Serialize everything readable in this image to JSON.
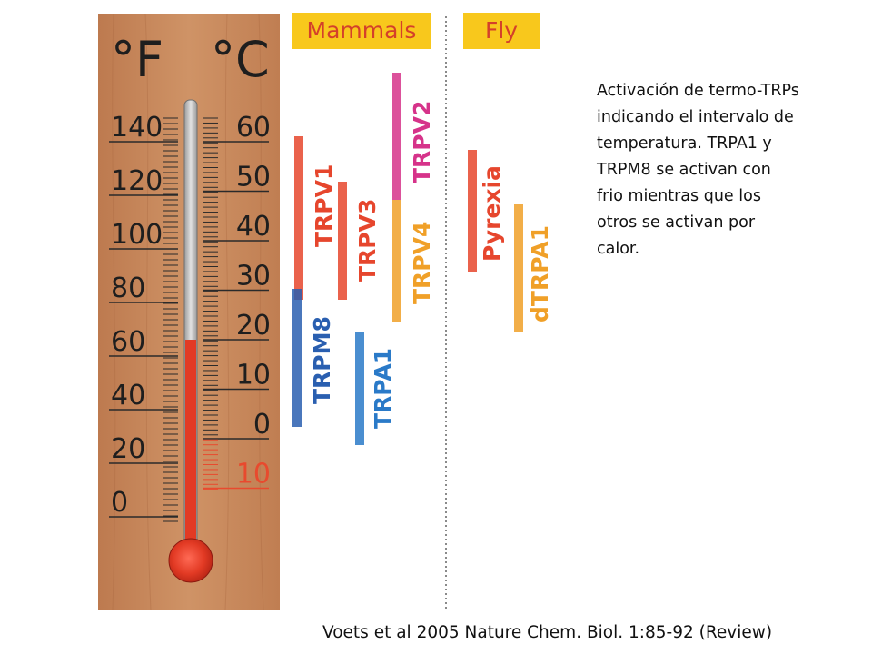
{
  "thermometer": {
    "unit_f": "°F",
    "unit_c": "°C",
    "fahrenheit_labels": [
      "140",
      "120",
      "100",
      "80",
      "60",
      "40",
      "20",
      "0"
    ],
    "celsius_labels": [
      "60",
      "50",
      "40",
      "30",
      "20",
      "10",
      "0"
    ],
    "celsius_negative_label": "10",
    "reading_celsius": 20
  },
  "groups": {
    "mammals": "Mammals",
    "fly": "Fly"
  },
  "channels": [
    {
      "name": "TRPV1",
      "color": "#e6462d"
    },
    {
      "name": "TRPV3",
      "color": "#e6462d"
    },
    {
      "name": "TRPV2",
      "color": "#d6338a"
    },
    {
      "name": "TRPV4",
      "color": "#f0a028"
    },
    {
      "name": "TRPM8",
      "color": "#2a5fb0"
    },
    {
      "name": "TRPA1",
      "color": "#2a7ac8"
    },
    {
      "name": "Pyrexia",
      "color": "#e6462d"
    },
    {
      "name": "dTRPA1",
      "color": "#f0a028"
    }
  ],
  "description": "Activación de termo-TRPs indicando el intervalo de temperatura. TRPA1 y TRPM8 se activan con frio mientras que los otros se activan por calor.",
  "citation": "Voets et al 2005 Nature Chem. Biol. 1:85-92 (Review)",
  "colors": {
    "wood": "#c8875a",
    "mercury": "#e23a24",
    "group_label_bg": "#f8c81c",
    "group_label_text": "#d4402a"
  }
}
